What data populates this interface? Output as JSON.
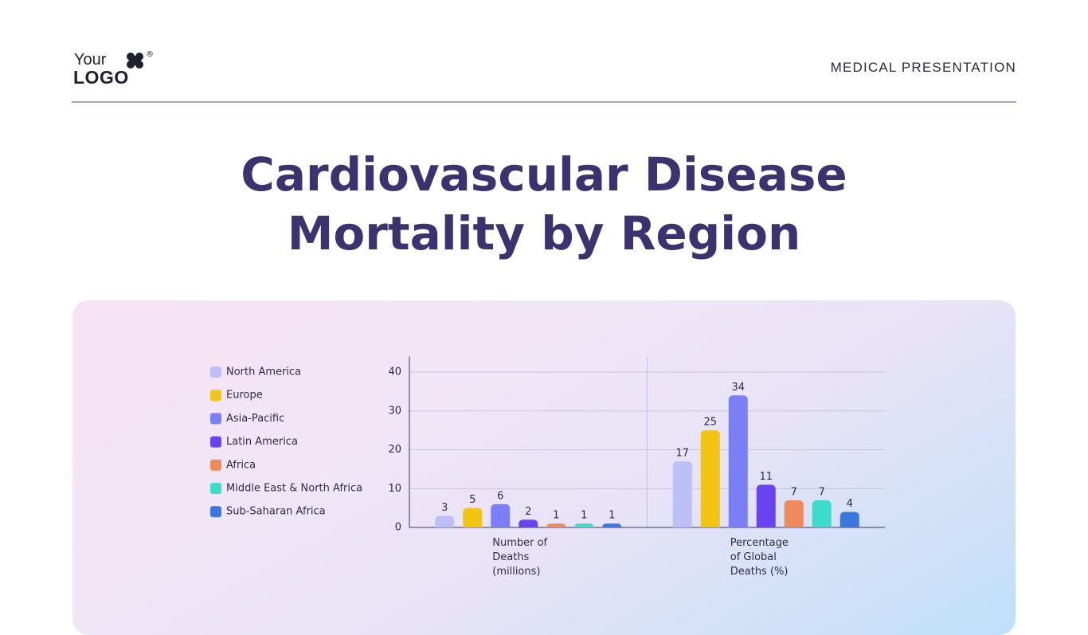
{
  "header": {
    "logo_line1": "Your",
    "logo_line2": "LOGO",
    "logo_mark": "®",
    "label": "MEDICAL PRESENTATION"
  },
  "chart_data": {
    "type": "bar",
    "title": "Cardiovascular Disease Mortality by Region",
    "categories": [
      "Number of Deaths (millions)",
      "Percentage of Global Deaths (%)"
    ],
    "series": [
      {
        "name": "North America",
        "color": "#bcc0f7",
        "values": [
          3,
          17
        ]
      },
      {
        "name": "Europe",
        "color": "#f2c414",
        "values": [
          5,
          25
        ]
      },
      {
        "name": "Asia-Pacific",
        "color": "#7b7ff5",
        "values": [
          6,
          34
        ]
      },
      {
        "name": "Latin America",
        "color": "#6a44f0",
        "values": [
          2,
          11
        ]
      },
      {
        "name": "Africa",
        "color": "#f08a5a",
        "values": [
          1,
          7
        ]
      },
      {
        "name": "Middle East & North Africa",
        "color": "#3ddbc9",
        "values": [
          1,
          7
        ]
      },
      {
        "name": "Sub-Saharan Africa",
        "color": "#3a78e0",
        "values": [
          1,
          4
        ]
      }
    ],
    "ylim": [
      0,
      44
    ],
    "yticks": [
      0,
      10,
      20,
      30,
      40
    ],
    "grid": true,
    "legend": "left"
  }
}
